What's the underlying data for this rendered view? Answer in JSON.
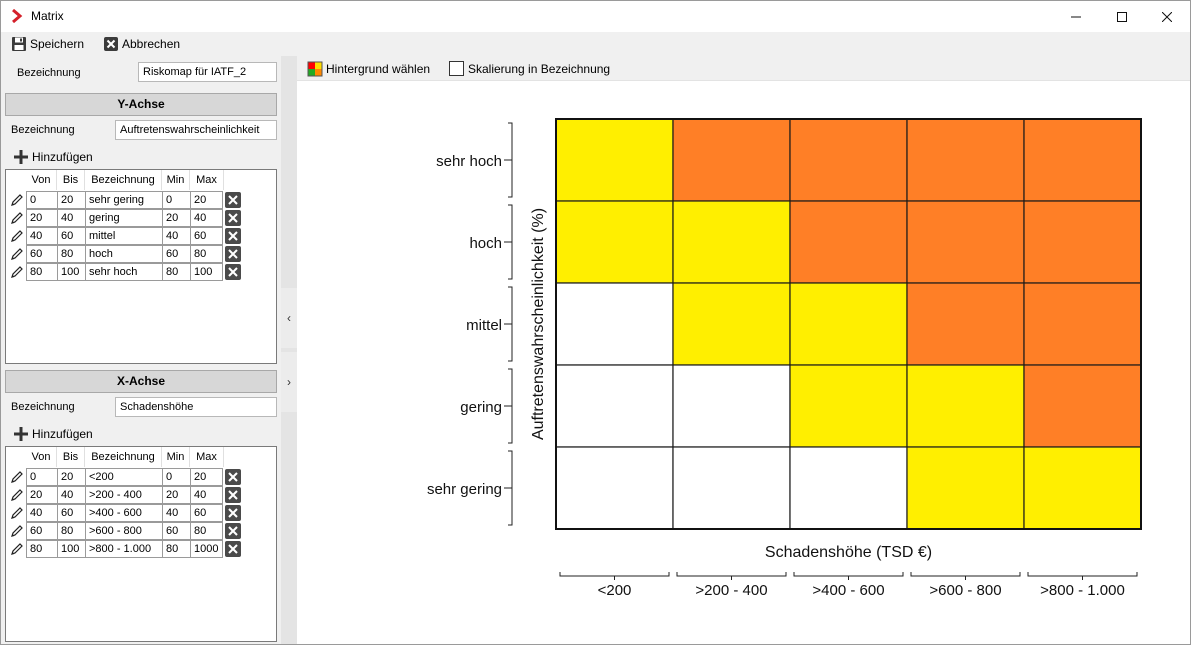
{
  "window": {
    "title": "Matrix"
  },
  "toolbar": {
    "save_label": "Speichern",
    "cancel_label": "Abbrechen"
  },
  "name": {
    "label": "Bezeichnung",
    "value": "Riskomap für IATF_2"
  },
  "y_axis": {
    "header": "Y-Achse",
    "name_label": "Bezeichnung",
    "name_value": "Auftretenswahrscheinlichkeit",
    "add_label": "Hinzufügen",
    "columns": [
      "Von",
      "Bis",
      "Bezeichnung",
      "Min",
      "Max"
    ],
    "rows": [
      {
        "von": "0",
        "bis": "20",
        "bez": "sehr gering",
        "min": "0",
        "max": "20"
      },
      {
        "von": "20",
        "bis": "40",
        "bez": "gering",
        "min": "20",
        "max": "40"
      },
      {
        "von": "40",
        "bis": "60",
        "bez": "mittel",
        "min": "40",
        "max": "60"
      },
      {
        "von": "60",
        "bis": "80",
        "bez": "hoch",
        "min": "60",
        "max": "80"
      },
      {
        "von": "80",
        "bis": "100",
        "bez": "sehr hoch",
        "min": "80",
        "max": "100"
      }
    ]
  },
  "x_axis": {
    "header": "X-Achse",
    "name_label": "Bezeichnung",
    "name_value": "Schadenshöhe",
    "add_label": "Hinzufügen",
    "columns": [
      "Von",
      "Bis",
      "Bezeichnung",
      "Min",
      "Max"
    ],
    "rows": [
      {
        "von": "0",
        "bis": "20",
        "bez": "<200",
        "min": "0",
        "max": "20"
      },
      {
        "von": "20",
        "bis": "40",
        "bez": ">200 - 400",
        "min": "20",
        "max": "40"
      },
      {
        "von": "40",
        "bis": "60",
        "bez": ">400 - 600",
        "min": "40",
        "max": "60"
      },
      {
        "von": "60",
        "bis": "80",
        "bez": ">600 - 800",
        "min": "60",
        "max": "80"
      },
      {
        "von": "80",
        "bis": "100",
        "bez": ">800 - 1.000",
        "min": "80",
        "max": "1000"
      }
    ]
  },
  "right_toolbar": {
    "background_label": "Hintergrund wählen",
    "scale_label": "Skalierung in Bezeichnung",
    "scale_checked": false
  },
  "matrix": {
    "ylabel": "Auftretenswahrscheinlichkeit (%)",
    "xlabel": "Schadenshöhe (TSD €)",
    "y_categories": [
      "sehr hoch",
      "hoch",
      "mittel",
      "gering",
      "sehr gering"
    ],
    "x_categories": [
      "<200",
      ">200 - 400",
      ">400 - 600",
      ">600 - 800",
      ">800 - 1.000"
    ],
    "colors": {
      "white": "#ffffff",
      "yellow": "#ffef00",
      "orange": "#ff7f26"
    },
    "cells": [
      [
        "yellow",
        "orange",
        "orange",
        "orange",
        "orange"
      ],
      [
        "yellow",
        "yellow",
        "orange",
        "orange",
        "orange"
      ],
      [
        "white",
        "yellow",
        "yellow",
        "orange",
        "orange"
      ],
      [
        "white",
        "white",
        "yellow",
        "yellow",
        "orange"
      ],
      [
        "white",
        "white",
        "white",
        "yellow",
        "yellow"
      ]
    ]
  }
}
